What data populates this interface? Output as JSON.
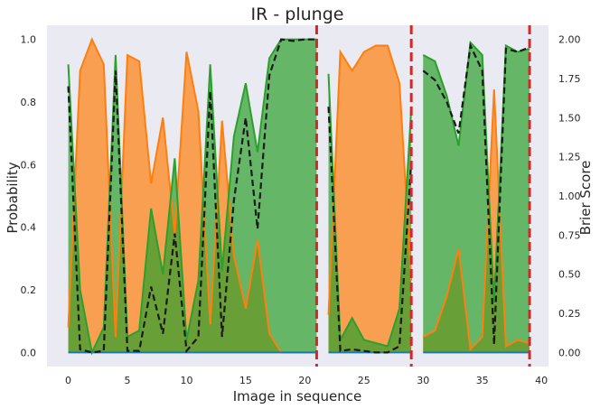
{
  "chart_data": {
    "type": "area",
    "title": "IR - plunge",
    "xlabel": "Image in sequence",
    "ylabel_left": "Probability",
    "ylabel_right": "Brier Score",
    "xlim": [
      -1.8,
      40.6
    ],
    "ylim_left": [
      -0.045,
      1.045
    ],
    "ylim_right": [
      -0.09,
      2.09
    ],
    "x_ticks": [
      0,
      5,
      10,
      15,
      20,
      25,
      30,
      35,
      40
    ],
    "x_tick_labels": [
      "0",
      "5",
      "10",
      "15",
      "20",
      "25",
      "30",
      "35",
      "40"
    ],
    "y_left_ticks": [
      0.0,
      0.2,
      0.4,
      0.6,
      0.8,
      1.0
    ],
    "y_left_tick_labels": [
      "0.0",
      "0.2",
      "0.4",
      "0.6",
      "0.8",
      "1.0"
    ],
    "y_right_ticks": [
      0.0,
      0.25,
      0.5,
      0.75,
      1.0,
      1.25,
      1.5,
      1.75,
      2.0
    ],
    "y_right_tick_labels": [
      "0.00",
      "0.25",
      "0.50",
      "0.75",
      "1.00",
      "1.25",
      "1.50",
      "1.75",
      "2.00"
    ],
    "grid": false,
    "colors": {
      "background": "#eaeaf2",
      "orange": "#ff7f0e",
      "green": "#2ca02c",
      "blue": "#1f77b4",
      "brier": "#1a1a1a",
      "boundary": "#d62728"
    },
    "segments": [
      {
        "x": [
          0,
          1,
          2,
          3,
          4,
          5,
          6,
          7,
          8,
          9,
          10,
          11,
          12,
          13,
          14,
          15,
          16,
          17,
          18,
          19,
          20,
          21
        ],
        "orange": [
          0.08,
          0.9,
          1.0,
          0.92,
          0.05,
          0.95,
          0.93,
          0.54,
          0.75,
          0.38,
          0.96,
          0.77,
          0.09,
          0.74,
          0.31,
          0.14,
          0.36,
          0.06,
          0.0,
          0.0,
          0.0,
          0.0
        ],
        "green": [
          0.92,
          0.2,
          0.0,
          0.08,
          0.95,
          0.05,
          0.07,
          0.46,
          0.25,
          0.62,
          0.04,
          0.23,
          0.92,
          0.26,
          0.69,
          0.86,
          0.64,
          0.94,
          1.0,
          1.0,
          1.0,
          1.0
        ],
        "blue": [
          0,
          0,
          0,
          0,
          0,
          0,
          0,
          0,
          0,
          0,
          0,
          0,
          0,
          0,
          0,
          0,
          0,
          0,
          0,
          0,
          0,
          0
        ],
        "brier": [
          1.7,
          0.02,
          0.0,
          0.01,
          1.8,
          0.01,
          0.01,
          0.42,
          0.12,
          0.76,
          0.01,
          0.1,
          1.67,
          0.1,
          0.97,
          1.5,
          0.79,
          1.77,
          2.0,
          1.99,
          2.0,
          2.0
        ]
      },
      {
        "x": [
          22,
          23,
          24,
          25,
          26,
          27,
          28,
          29
        ],
        "orange": [
          0.12,
          0.96,
          0.9,
          0.96,
          0.98,
          0.98,
          0.86,
          0.23
        ],
        "green": [
          0.89,
          0.04,
          0.11,
          0.04,
          0.03,
          0.02,
          0.14,
          0.78
        ],
        "blue": [
          0,
          0,
          0,
          0,
          0,
          0,
          0,
          0
        ],
        "brier": [
          1.57,
          0.01,
          0.02,
          0.01,
          0.0,
          0.0,
          0.04,
          1.22
        ]
      },
      {
        "x": [
          30,
          31,
          32,
          33,
          34,
          35,
          36,
          37,
          38,
          39
        ],
        "orange": [
          0.05,
          0.07,
          0.18,
          0.33,
          0.01,
          0.05,
          0.84,
          0.02,
          0.04,
          0.03
        ],
        "green": [
          0.95,
          0.93,
          0.82,
          0.66,
          0.99,
          0.95,
          0.16,
          0.98,
          0.96,
          0.97
        ],
        "blue": [
          0,
          0,
          0,
          0,
          0,
          0,
          0,
          0,
          0,
          0
        ],
        "brier": [
          1.8,
          1.74,
          1.6,
          1.4,
          1.96,
          1.8,
          0.05,
          1.94,
          1.92,
          1.95
        ]
      }
    ],
    "boundaries": [
      21,
      29,
      39
    ]
  }
}
